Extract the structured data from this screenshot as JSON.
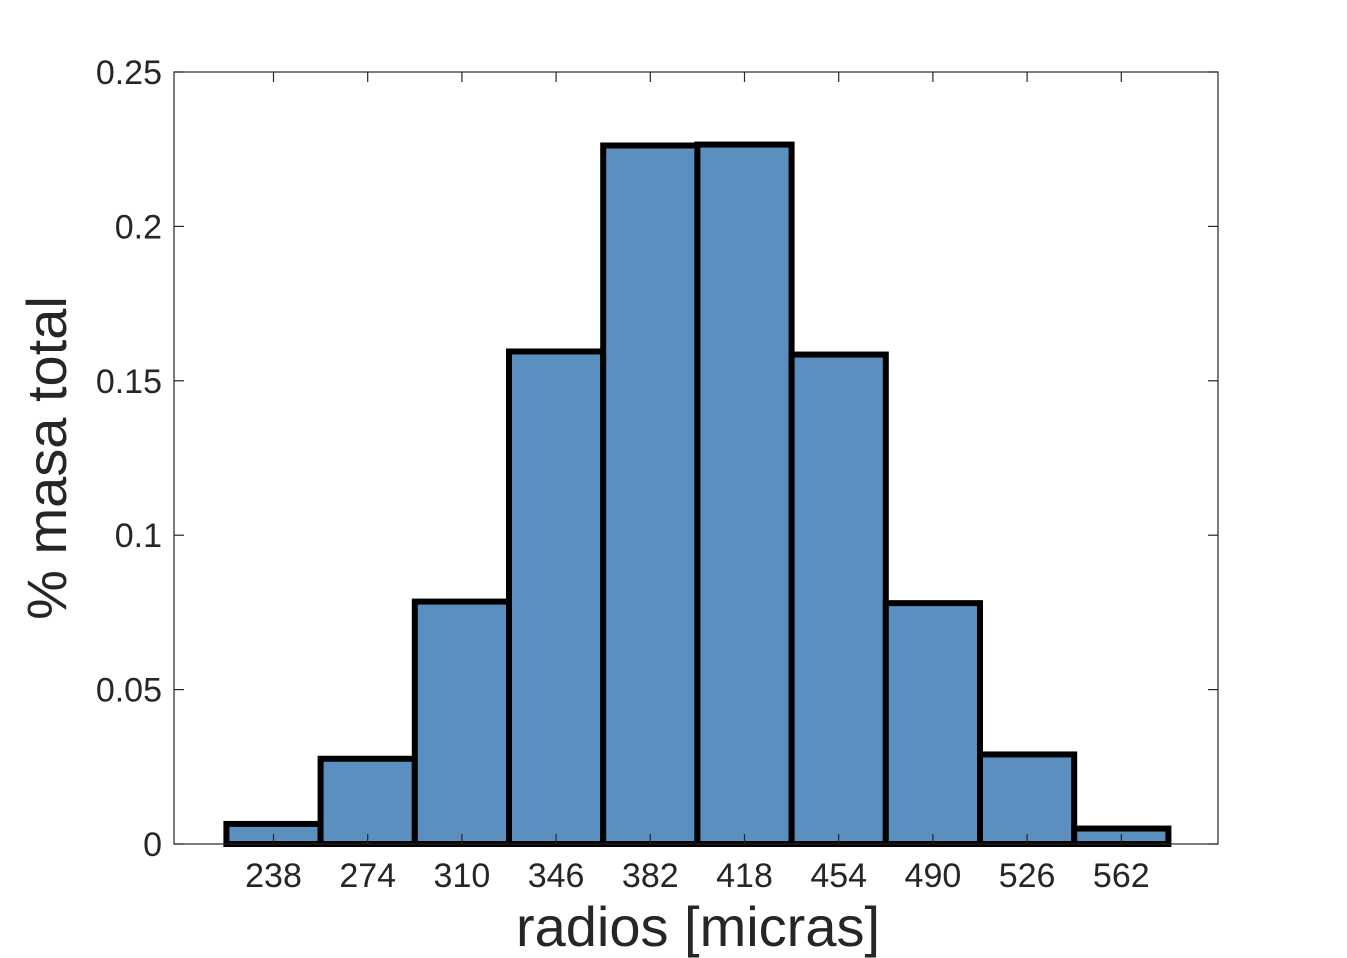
{
  "chart_data": {
    "type": "bar",
    "title": "",
    "xlabel": "radios [micras]",
    "ylabel": "% masa total",
    "categories": [
      "238",
      "274",
      "310",
      "346",
      "382",
      "418",
      "454",
      "490",
      "526",
      "562"
    ],
    "values": [
      0.0065,
      0.0276,
      0.0785,
      0.1595,
      0.2262,
      0.2265,
      0.1585,
      0.078,
      0.029,
      0.005
    ],
    "ylim": [
      0,
      0.25
    ],
    "yticks": [
      0,
      0.05,
      0.1,
      0.15,
      0.2,
      0.25
    ],
    "ytick_labels": [
      "0",
      "0.05",
      "0.1",
      "0.15",
      "0.2",
      "0.25"
    ],
    "grid": false,
    "bar_color": "#5a8fbf",
    "edge_color": "#000000"
  }
}
